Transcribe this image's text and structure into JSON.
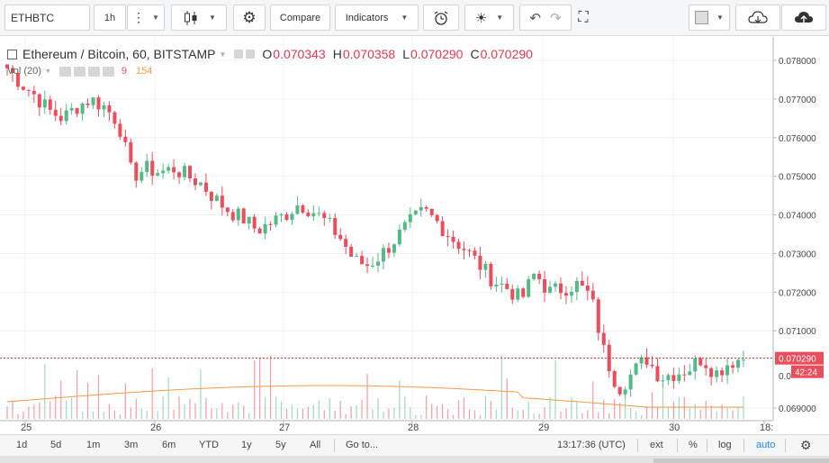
{
  "toolbar": {
    "symbol": "ETHBTC",
    "interval": "1h",
    "compare_label": "Compare",
    "indicators_label": "Indicators"
  },
  "legend": {
    "title": "Ethereum / Bitcoin, 60, BITSTAMP",
    "open_key": "O",
    "open": "0.070343",
    "high_key": "H",
    "high": "0.070358",
    "low_key": "L",
    "low": "0.070290",
    "close_key": "C",
    "close": "0.070290"
  },
  "volume_legend": {
    "label": "Vol (20)",
    "value": "9",
    "ma_value": "154"
  },
  "price_axis": {
    "ticks": [
      "0.078000",
      "0.077000",
      "0.076000",
      "0.075000",
      "0.074000",
      "0.073000",
      "0.072000",
      "0.071000",
      "0.069000"
    ],
    "partial_tick": "0.0",
    "last_price": "0.070290",
    "countdown": "42:24"
  },
  "time_axis": {
    "ticks": [
      "25",
      "26",
      "27",
      "28",
      "29",
      "30",
      "18:"
    ]
  },
  "bottom": {
    "ranges": [
      "1d",
      "5d",
      "1m",
      "3m",
      "6m",
      "YTD",
      "1y",
      "5y",
      "All"
    ],
    "goto": "Go to...",
    "time": "13:17:36 (UTC)",
    "ext": "ext",
    "percent": "%",
    "log": "log",
    "auto": "auto"
  },
  "colors": {
    "up": "#53b987",
    "down": "#eb4d5c",
    "volume_ma": "#f19a4c",
    "last_price_line": "#c0392b",
    "accent": "#1e88e5"
  },
  "chart_data": {
    "type": "candlestick",
    "title": "Ethereum / Bitcoin, 60, BITSTAMP",
    "x_ticks": [
      "25",
      "26",
      "27",
      "28",
      "29",
      "30",
      "18:"
    ],
    "ylim": [
      0.0687,
      0.0785
    ],
    "close_path": [
      0.0778,
      0.0774,
      0.0771,
      0.0767,
      0.0765,
      0.0768,
      0.077,
      0.0768,
      0.0764,
      0.075,
      0.0752,
      0.0751,
      0.0752,
      0.075,
      0.0748,
      0.0744,
      0.0741,
      0.0739,
      0.0736,
      0.0738,
      0.074,
      0.0743,
      0.0741,
      0.0738,
      0.0734,
      0.0728,
      0.0727,
      0.073,
      0.0734,
      0.0738,
      0.0741,
      0.0738,
      0.0734,
      0.0731,
      0.0727,
      0.0723,
      0.0721,
      0.0718,
      0.0725,
      0.072,
      0.0721,
      0.0722,
      0.0719,
      0.0704,
      0.0695,
      0.0699,
      0.0703,
      0.0698,
      0.0699,
      0.07,
      0.0703,
      0.0699,
      0.0702,
      0.07029
    ],
    "volume_peaks": [
      {
        "x_tick": "25",
        "level": "medium"
      },
      {
        "x_tick": "27",
        "level": "high"
      },
      {
        "x_tick": "28",
        "level": "very-high"
      },
      {
        "x_tick": "29",
        "level": "high"
      }
    ]
  }
}
